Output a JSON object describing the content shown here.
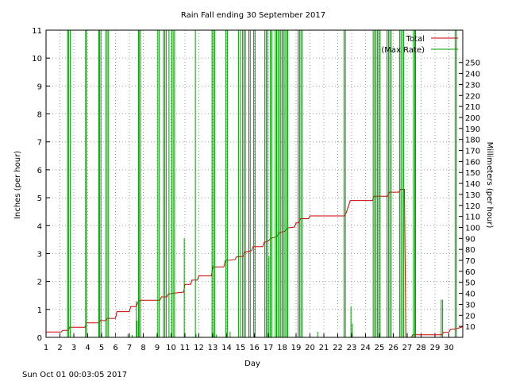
{
  "chart_data": {
    "type": "line",
    "title": "Rain Fall ending 30 September 2017",
    "xlabel": "Day",
    "ylabel_left": "Inches (per hour)",
    "ylabel_right": "Millimeters (per hour)",
    "xlim": [
      1,
      31
    ],
    "ylim": [
      0,
      11
    ],
    "ylim_right_mm": [
      0,
      279.4
    ],
    "x_ticks": [
      "1",
      "2",
      "3",
      "4",
      "5",
      "6",
      "7",
      "8",
      "9",
      "10",
      "11",
      "12",
      "13",
      "14",
      "15",
      "16",
      "17",
      "18",
      "19",
      "20",
      "21",
      "22",
      "23",
      "24",
      "25",
      "26",
      "27",
      "28",
      "29",
      "30"
    ],
    "y_ticks_left": [
      "0",
      "1",
      "2",
      "3",
      "4",
      "5",
      "6",
      "7",
      "8",
      "9",
      "10",
      "11"
    ],
    "y_ticks_right": [
      "10",
      "20",
      "30",
      "40",
      "50",
      "60",
      "70",
      "80",
      "90",
      "100",
      "110",
      "120",
      "130",
      "140",
      "150",
      "160",
      "170",
      "180",
      "190",
      "200",
      "210",
      "220",
      "230",
      "240",
      "250"
    ],
    "grid": true,
    "legend_position": "top-right",
    "series": [
      {
        "name": "Total",
        "color": "#cc0000",
        "style": "step",
        "points": [
          [
            1.0,
            0.19
          ],
          [
            2.1,
            0.19
          ],
          [
            2.2,
            0.25
          ],
          [
            2.6,
            0.25
          ],
          [
            2.7,
            0.36
          ],
          [
            3.8,
            0.36
          ],
          [
            3.9,
            0.52
          ],
          [
            4.8,
            0.52
          ],
          [
            4.9,
            0.6
          ],
          [
            5.3,
            0.6
          ],
          [
            5.4,
            0.68
          ],
          [
            6.0,
            0.68
          ],
          [
            6.1,
            0.92
          ],
          [
            7.0,
            0.92
          ],
          [
            7.1,
            1.1
          ],
          [
            7.5,
            1.1
          ],
          [
            7.6,
            1.25
          ],
          [
            7.8,
            1.33
          ],
          [
            9.2,
            1.33
          ],
          [
            9.3,
            1.45
          ],
          [
            9.7,
            1.45
          ],
          [
            9.8,
            1.55
          ],
          [
            10.2,
            1.58
          ],
          [
            10.9,
            1.62
          ],
          [
            11.0,
            1.9
          ],
          [
            11.4,
            1.9
          ],
          [
            11.5,
            2.05
          ],
          [
            11.9,
            2.05
          ],
          [
            12.0,
            2.2
          ],
          [
            12.9,
            2.2
          ],
          [
            13.0,
            2.52
          ],
          [
            13.8,
            2.52
          ],
          [
            13.9,
            2.75
          ],
          [
            14.6,
            2.78
          ],
          [
            14.7,
            2.88
          ],
          [
            15.2,
            2.9
          ],
          [
            15.3,
            3.05
          ],
          [
            15.8,
            3.1
          ],
          [
            15.9,
            3.25
          ],
          [
            16.6,
            3.25
          ],
          [
            16.7,
            3.4
          ],
          [
            17.0,
            3.45
          ],
          [
            17.2,
            3.55
          ],
          [
            17.6,
            3.6
          ],
          [
            17.8,
            3.75
          ],
          [
            18.2,
            3.8
          ],
          [
            18.4,
            3.92
          ],
          [
            18.9,
            3.95
          ],
          [
            19.0,
            4.1
          ],
          [
            19.2,
            4.1
          ],
          [
            19.3,
            4.25
          ],
          [
            19.9,
            4.25
          ],
          [
            20.0,
            4.35
          ],
          [
            22.5,
            4.35
          ],
          [
            22.6,
            4.45
          ],
          [
            22.9,
            4.9
          ],
          [
            24.5,
            4.9
          ],
          [
            24.6,
            5.05
          ],
          [
            25.6,
            5.05
          ],
          [
            25.7,
            5.2
          ],
          [
            26.4,
            5.2
          ],
          [
            26.5,
            5.3
          ],
          [
            26.8,
            5.3
          ],
          [
            26.9,
            0.0
          ],
          [
            27.3,
            0.0
          ],
          [
            27.4,
            0.09
          ],
          [
            29.5,
            0.09
          ],
          [
            29.6,
            0.18
          ],
          [
            30.0,
            0.18
          ],
          [
            30.1,
            0.28
          ],
          [
            30.5,
            0.3
          ],
          [
            31.0,
            0.38
          ]
        ]
      },
      {
        "name": "(Max Rate)",
        "color": "#00a000",
        "style": "bars",
        "points": [
          [
            2.55,
            11
          ],
          [
            2.62,
            11
          ],
          [
            2.75,
            11
          ],
          [
            3.85,
            11
          ],
          [
            3.9,
            11
          ],
          [
            4.8,
            11
          ],
          [
            4.85,
            11
          ],
          [
            4.95,
            11
          ],
          [
            5.3,
            11
          ],
          [
            5.4,
            11
          ],
          [
            5.5,
            11
          ],
          [
            6.0,
            0.1
          ],
          [
            6.9,
            0.12
          ],
          [
            7.2,
            0.08
          ],
          [
            7.5,
            1.3
          ],
          [
            7.55,
            0.6
          ],
          [
            7.65,
            11
          ],
          [
            7.7,
            11
          ],
          [
            7.8,
            11
          ],
          [
            9.05,
            11
          ],
          [
            9.15,
            11
          ],
          [
            9.45,
            11
          ],
          [
            9.55,
            11
          ],
          [
            9.65,
            11
          ],
          [
            9.85,
            11
          ],
          [
            10.05,
            11
          ],
          [
            10.15,
            11
          ],
          [
            10.25,
            11
          ],
          [
            10.95,
            3.55
          ],
          [
            11.75,
            11
          ],
          [
            11.8,
            0.12
          ],
          [
            12.95,
            11
          ],
          [
            13.05,
            11
          ],
          [
            13.15,
            11
          ],
          [
            13.25,
            0.1
          ],
          [
            13.95,
            11
          ],
          [
            14.05,
            11
          ],
          [
            14.25,
            0.2
          ],
          [
            14.85,
            11
          ],
          [
            15.0,
            11
          ],
          [
            15.15,
            11
          ],
          [
            15.25,
            11
          ],
          [
            15.35,
            11
          ],
          [
            15.6,
            11
          ],
          [
            15.7,
            11
          ],
          [
            15.95,
            11
          ],
          [
            16.05,
            11
          ],
          [
            16.75,
            11
          ],
          [
            16.85,
            11
          ],
          [
            16.95,
            11
          ],
          [
            17.05,
            2.9
          ],
          [
            17.15,
            11
          ],
          [
            17.25,
            11
          ],
          [
            17.5,
            11
          ],
          [
            17.6,
            11
          ],
          [
            17.7,
            11
          ],
          [
            17.8,
            11
          ],
          [
            17.9,
            11
          ],
          [
            18.0,
            11
          ],
          [
            18.1,
            11
          ],
          [
            18.2,
            11
          ],
          [
            18.3,
            11
          ],
          [
            18.4,
            11
          ],
          [
            19.15,
            11
          ],
          [
            19.25,
            11
          ],
          [
            19.35,
            11
          ],
          [
            19.45,
            11
          ],
          [
            20.55,
            0.2
          ],
          [
            22.45,
            11
          ],
          [
            22.55,
            11
          ],
          [
            22.95,
            1.1
          ],
          [
            23.05,
            0.5
          ],
          [
            24.55,
            11
          ],
          [
            24.65,
            11
          ],
          [
            24.75,
            11
          ],
          [
            24.85,
            11
          ],
          [
            24.95,
            11
          ],
          [
            25.05,
            11
          ],
          [
            25.55,
            11
          ],
          [
            25.65,
            11
          ],
          [
            25.75,
            11
          ],
          [
            25.85,
            11
          ],
          [
            26.45,
            11
          ],
          [
            26.55,
            11
          ],
          [
            26.65,
            11
          ],
          [
            26.75,
            11
          ],
          [
            27.45,
            11
          ],
          [
            27.55,
            11
          ],
          [
            27.6,
            11
          ],
          [
            29.45,
            1.35
          ],
          [
            29.55,
            1.35
          ],
          [
            30.45,
            11
          ],
          [
            30.55,
            11
          ]
        ]
      }
    ]
  },
  "timestamp": "Sun Oct 01 00:03:05 2017"
}
